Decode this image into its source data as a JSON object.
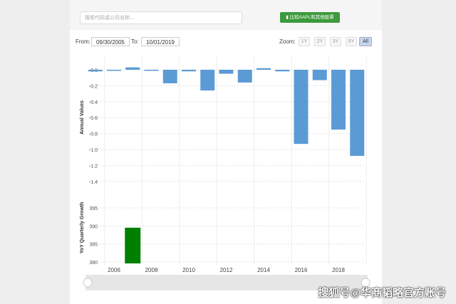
{
  "search": {
    "placeholder": "搜索代码或公司名称..."
  },
  "compare_button": "比较AAPL和其他股票",
  "range": {
    "from_label": "From:",
    "from": "09/30/2005",
    "to_label": "To:",
    "to": "10/01/2019"
  },
  "zoom": {
    "label": "Zoom:",
    "options": [
      "1Y",
      "2Y",
      "3Y",
      "5Y",
      "All"
    ],
    "active": "All"
  },
  "watermark": "搜狐号@华商韬略官方账号",
  "colors": {
    "annual": "#5b9bd5",
    "yoy": "#008000"
  },
  "chart_data": [
    {
      "type": "bar",
      "ylabel": "Annual Values",
      "ylim": [
        -1.4,
        0.1
      ],
      "yticks": [
        "0.0",
        "-0.2",
        "-0.4",
        "-0.6",
        "-0.8",
        "-1.0",
        "-1.2",
        "-1.4"
      ],
      "grid": true,
      "x": [
        2005,
        2006,
        2007,
        2008,
        2009,
        2010,
        2011,
        2012,
        2013,
        2014,
        2015,
        2016,
        2017,
        2018,
        2019
      ],
      "values": [
        -0.02,
        -0.005,
        0.03,
        -0.01,
        -0.17,
        -0.02,
        -0.26,
        -0.05,
        -0.16,
        0.02,
        -0.02,
        -0.93,
        -0.13,
        -0.75,
        -1.08
      ]
    },
    {
      "type": "bar",
      "ylabel": "YoY Quarterly Growth",
      "ylim": [
        380,
        397
      ],
      "yticks": [
        "395",
        "390",
        "385",
        "380"
      ],
      "grid": true,
      "x": [
        2007
      ],
      "values": [
        389.5
      ],
      "xticks": [
        "2006",
        "2008",
        "2010",
        "2012",
        "2014",
        "2016",
        "2018"
      ]
    }
  ]
}
